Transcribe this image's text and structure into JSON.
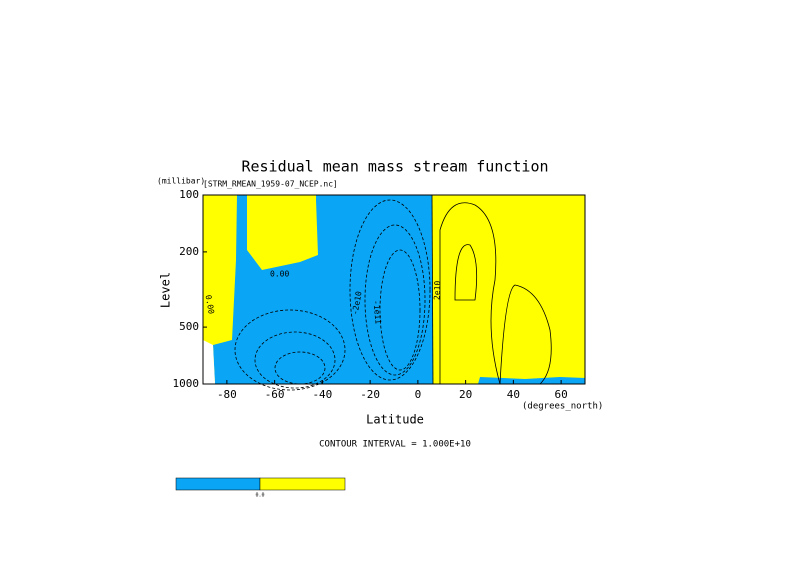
{
  "chart_data": {
    "type": "contour",
    "title": "Residual mean mass stream function",
    "subtitle": "[STRM_RMEAN_1959-07_NCEP.nc]",
    "x_label": "Latitude",
    "x_unit": "(degrees_north)",
    "y_label": "Level",
    "y_unit": "(millibar)",
    "xlim": [
      -90,
      70
    ],
    "xticks": [
      -80,
      -60,
      -40,
      -20,
      0,
      20,
      40,
      60
    ],
    "ylim": [
      1000,
      100
    ],
    "yticks": [
      100,
      200,
      500,
      1000
    ],
    "y_log": true,
    "footnote": "CONTOUR INTERVAL = 1.000E+10",
    "colorbar": {
      "colors": [
        "#0aa5f5",
        "#ffff00"
      ],
      "label": "0.0"
    },
    "annotations": [
      "0.00",
      "0.00",
      "-2e10",
      "-1e11",
      "2e10"
    ]
  }
}
